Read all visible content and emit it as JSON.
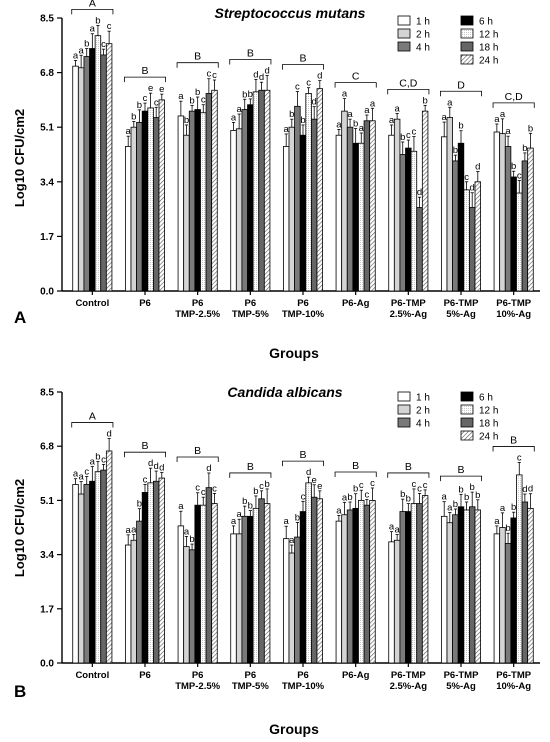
{
  "chart_data": [
    {
      "panel": "A",
      "type": "bar",
      "title": "Streptococcus mutans",
      "xlabel": "Groups",
      "ylabel": "Log10 CFU/cm2",
      "ylim": [
        0,
        8.5
      ],
      "yticks": [
        "0.0",
        "1.7",
        "3.4",
        "5.1",
        "6.8",
        "8.5"
      ],
      "categories": [
        "Control",
        "P6",
        "P6 TMP-2.5%",
        "P6 TMP-5%",
        "P6 TMP-10%",
        "P6-Ag",
        "P6-TMP 2.5%-Ag",
        "P6-TMP 5%-Ag",
        "P6-TMP 10%-Ag"
      ],
      "category_lines": [
        [
          "Control"
        ],
        [
          "P6"
        ],
        [
          "P6",
          "TMP-2.5%"
        ],
        [
          "P6",
          "TMP-5%"
        ],
        [
          "P6",
          "TMP-10%"
        ],
        [
          "P6-Ag"
        ],
        [
          "P6-TMP",
          "2.5%-Ag"
        ],
        [
          "P6-TMP",
          "5%-Ag"
        ],
        [
          "P6-TMP",
          "10%-Ag"
        ]
      ],
      "group_letters": [
        "A",
        "B",
        "B",
        "B",
        "B",
        "C",
        "C,D",
        "D",
        "C,D"
      ],
      "series_names": [
        "1 h",
        "2 h",
        "4 h",
        "6 h",
        "12 h",
        "18 h",
        "24 h"
      ],
      "values": [
        [
          7.0,
          6.95,
          7.3,
          7.55,
          7.95,
          7.35,
          7.7
        ],
        [
          4.5,
          5.1,
          5.25,
          5.6,
          5.7,
          5.4,
          5.95
        ],
        [
          5.45,
          4.85,
          5.6,
          5.65,
          5.55,
          6.15,
          6.25
        ],
        [
          5.0,
          5.05,
          5.65,
          5.8,
          6.2,
          6.25,
          6.25
        ],
        [
          4.5,
          5.1,
          5.75,
          4.85,
          6.15,
          5.35,
          6.3
        ],
        [
          4.85,
          5.6,
          5.1,
          4.6,
          4.6,
          5.3,
          5.3
        ],
        [
          4.85,
          5.35,
          4.25,
          4.45,
          4.35,
          2.6,
          5.6
        ],
        [
          4.8,
          5.4,
          4.05,
          4.6,
          3.15,
          2.6,
          3.4
        ],
        [
          4.95,
          4.9,
          4.5,
          3.55,
          3.05,
          4.05,
          4.45
        ]
      ],
      "stat_letters": [
        [
          "a",
          "a",
          "b",
          "a",
          "b",
          "c",
          "c"
        ],
        [
          "a",
          "b",
          "b",
          "c",
          "e",
          "c",
          "e"
        ],
        [
          "a",
          "b",
          "b",
          "b",
          "c",
          "c",
          "c"
        ],
        [
          "a",
          "a",
          "b",
          "b",
          "d",
          "d",
          "d"
        ],
        [
          "a",
          "b",
          "c",
          "b",
          "c",
          "d",
          "d"
        ],
        [
          "a",
          "a",
          "a",
          "b",
          "a",
          "a",
          "a"
        ],
        [
          "a",
          "a",
          "b",
          "c",
          "c",
          "d",
          "b"
        ],
        [
          "a",
          "a",
          "b",
          "b",
          "c",
          "d",
          "d"
        ],
        [
          "a",
          "a",
          "a",
          "b",
          "c",
          "b",
          "b"
        ]
      ]
    },
    {
      "panel": "B",
      "type": "bar",
      "title": "Candida albicans",
      "xlabel": "Groups",
      "ylabel": "Log10 CFU/cm2",
      "ylim": [
        0,
        8.5
      ],
      "yticks": [
        "0.0",
        "1.7",
        "3.4",
        "5.1",
        "6.8",
        "8.5"
      ],
      "categories": [
        "Control",
        "P6",
        "P6 TMP-2.5%",
        "P6 TMP-5%",
        "P6 TMP-10%",
        "P6-Ag",
        "P6-TMP 2.5%-Ag",
        "P6-TMP 5%-Ag",
        "P6-TMP 10%-Ag"
      ],
      "category_lines": [
        [
          "Control"
        ],
        [
          "P6"
        ],
        [
          "P6",
          "TMP-2.5%"
        ],
        [
          "P6",
          "TMP-5%"
        ],
        [
          "P6",
          "TMP-10%"
        ],
        [
          "P6-Ag"
        ],
        [
          "P6-TMP",
          "2.5%-Ag"
        ],
        [
          "P6-TMP",
          "5%-Ag"
        ],
        [
          "P6-TMP",
          "10%-Ag"
        ]
      ],
      "group_letters": [
        "A",
        "B",
        "B",
        "B",
        "B",
        "B",
        "B",
        "B",
        "B"
      ],
      "series_names": [
        "1 h",
        "2 h",
        "4 h",
        "6 h",
        "12 h",
        "18 h",
        "24 h"
      ],
      "values": [
        [
          5.6,
          5.3,
          5.6,
          5.7,
          6.0,
          6.05,
          6.65
        ],
        [
          3.7,
          3.85,
          4.45,
          5.35,
          5.65,
          5.7,
          5.8
        ],
        [
          4.3,
          3.65,
          3.55,
          4.95,
          4.95,
          5.5,
          5.0
        ],
        [
          4.05,
          4.05,
          4.6,
          4.6,
          4.85,
          5.15,
          5.0
        ],
        [
          3.9,
          3.45,
          3.95,
          4.75,
          5.65,
          5.2,
          5.15
        ],
        [
          4.45,
          4.65,
          4.8,
          4.85,
          5.1,
          4.95,
          5.1
        ],
        [
          3.8,
          3.85,
          4.75,
          4.75,
          5.0,
          5.0,
          5.25
        ],
        [
          4.6,
          4.4,
          4.65,
          4.9,
          4.8,
          4.9,
          4.8
        ],
        [
          4.05,
          4.25,
          3.75,
          4.55,
          5.9,
          5.05,
          4.85
        ]
      ],
      "stat_letters": [
        [
          "a",
          "a",
          "c",
          "a",
          "b",
          "c",
          "d"
        ],
        [
          "a",
          "a",
          "b",
          "c",
          "d",
          "d",
          "d"
        ],
        [
          "a",
          "a",
          "b",
          "c",
          "c",
          "d",
          "c"
        ],
        [
          "a",
          "a",
          "b",
          "b",
          "b",
          "c",
          "b"
        ],
        [
          "a",
          "a",
          "b",
          "c",
          "d",
          "e",
          "e"
        ],
        [
          "a",
          "a",
          "b",
          "b",
          "c",
          "c",
          "c"
        ],
        [
          "a",
          "a",
          "b",
          "b",
          "c",
          "c",
          "c"
        ],
        [
          "a",
          "a",
          "b",
          "b",
          "b",
          "b",
          "b"
        ],
        [
          "a",
          "a",
          "b",
          "b",
          "c",
          "d",
          "d"
        ]
      ]
    }
  ],
  "colors": {
    "series_fill": [
      "#ffffff",
      "#d4d4d4",
      "#7a7a7a",
      "#000000",
      "#ffffff",
      "#666666",
      "#ffffff"
    ],
    "series_pattern": [
      "none",
      "none",
      "none",
      "none",
      "dots",
      "none",
      "hatch"
    ],
    "axis": "#000000"
  }
}
